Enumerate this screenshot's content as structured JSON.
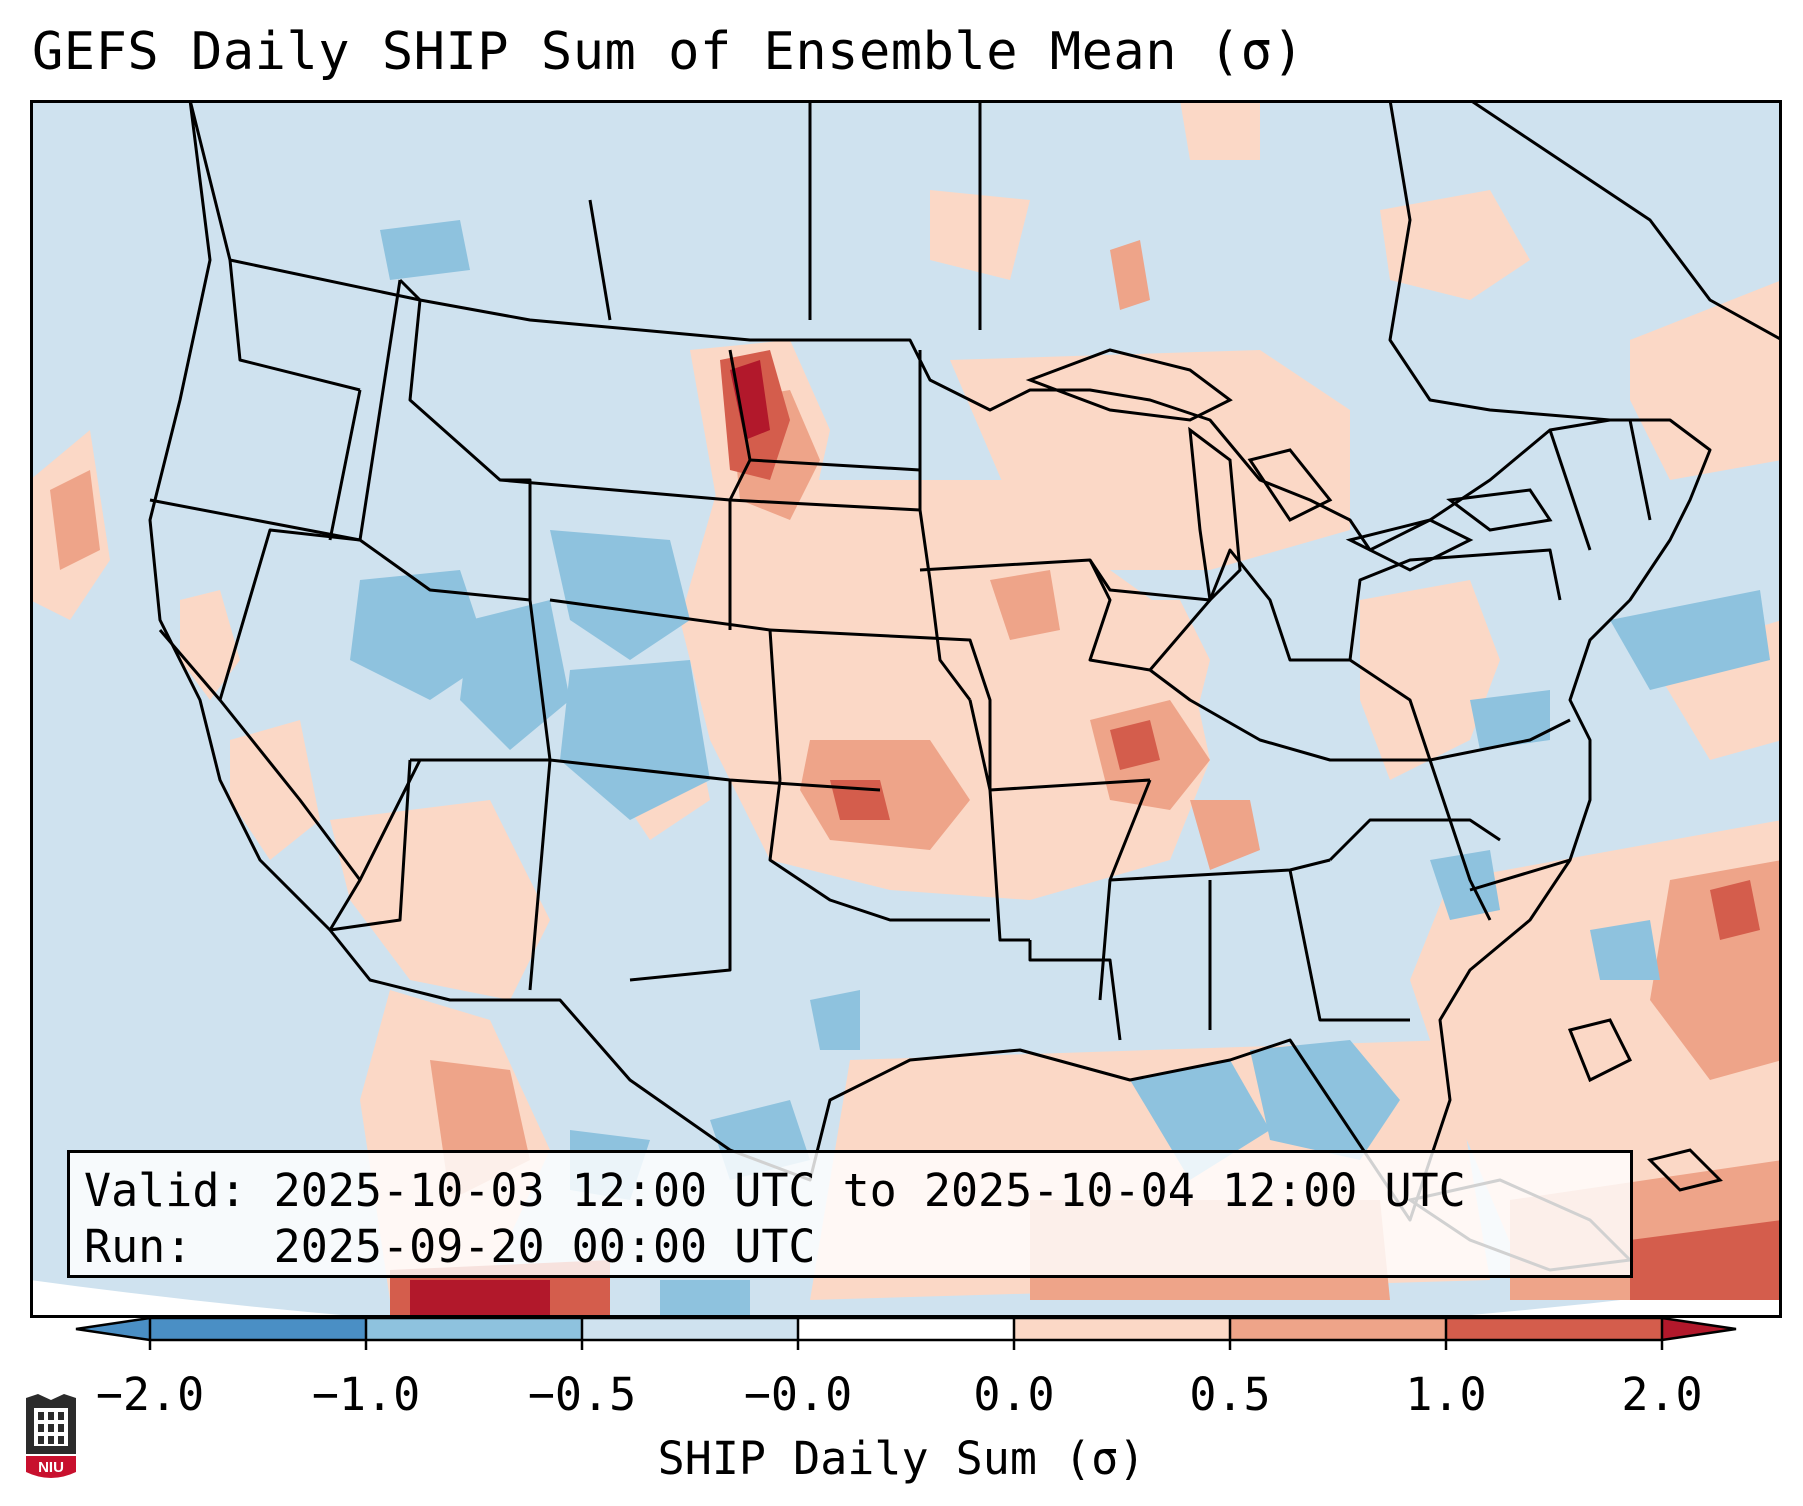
{
  "title": "GEFS Daily SHIP Sum of Ensemble Mean (σ)",
  "info": {
    "valid_label": "Valid:",
    "valid_value": "2025-10-03 12:00 UTC to 2025-10-04 12:00 UTC",
    "run_label": "Run:",
    "run_value": "2025-09-20 00:00 UTC"
  },
  "colorbar": {
    "title": "SHIP Daily Sum (σ)",
    "ticks": [
      "−2.0",
      "−1.0",
      "−0.5",
      "−0.0",
      "0.0",
      "0.5",
      "1.0",
      "2.0"
    ],
    "colors": [
      "#4a8fc5",
      "#8ec2de",
      "#cfe2ef",
      "#ffffff",
      "#fbd8c6",
      "#eea489",
      "#d45d4c",
      "#b2182b"
    ],
    "extend": "both"
  },
  "logo": {
    "text": "NIU",
    "icon": "university-shield-icon"
  },
  "map": {
    "region": "Contiguous United States",
    "ocean_color": "#cfe2ef",
    "land_base_color": "#cfe2ef"
  }
}
